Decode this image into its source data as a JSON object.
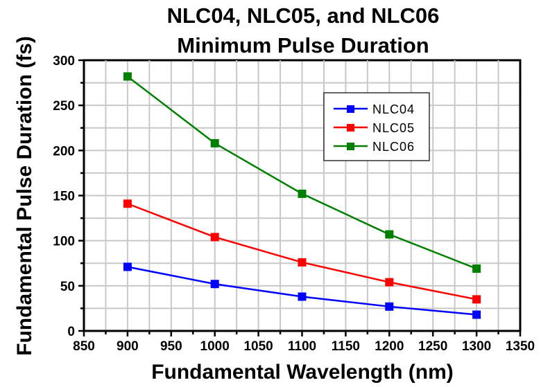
{
  "chart_data": {
    "type": "line",
    "title": [
      "NLC04, NLC05, and NLC06",
      "Minimum Pulse Duration"
    ],
    "xlabel": "Fundamental Wavelength (nm)",
    "ylabel": "Fundamental Pulse Duration (fs)",
    "xlim": [
      850,
      1350
    ],
    "ylim": [
      0,
      300
    ],
    "xticks": [
      850,
      900,
      950,
      1000,
      1050,
      1100,
      1150,
      1200,
      1250,
      1300,
      1350
    ],
    "yticks": [
      0,
      50,
      100,
      150,
      200,
      250,
      300
    ],
    "grid": true,
    "legend_position": "top-right",
    "x": [
      900,
      1000,
      1100,
      1200,
      1300
    ],
    "series": [
      {
        "name": "NLC04",
        "color": "#0000ff",
        "marker": "square",
        "values": [
          71,
          52,
          38,
          27,
          18
        ]
      },
      {
        "name": "NLC05",
        "color": "#ff0000",
        "marker": "square",
        "values": [
          141,
          104,
          76,
          54,
          35
        ]
      },
      {
        "name": "NLC06",
        "color": "#008000",
        "marker": "square",
        "values": [
          282,
          208,
          152,
          107,
          69
        ]
      }
    ]
  }
}
